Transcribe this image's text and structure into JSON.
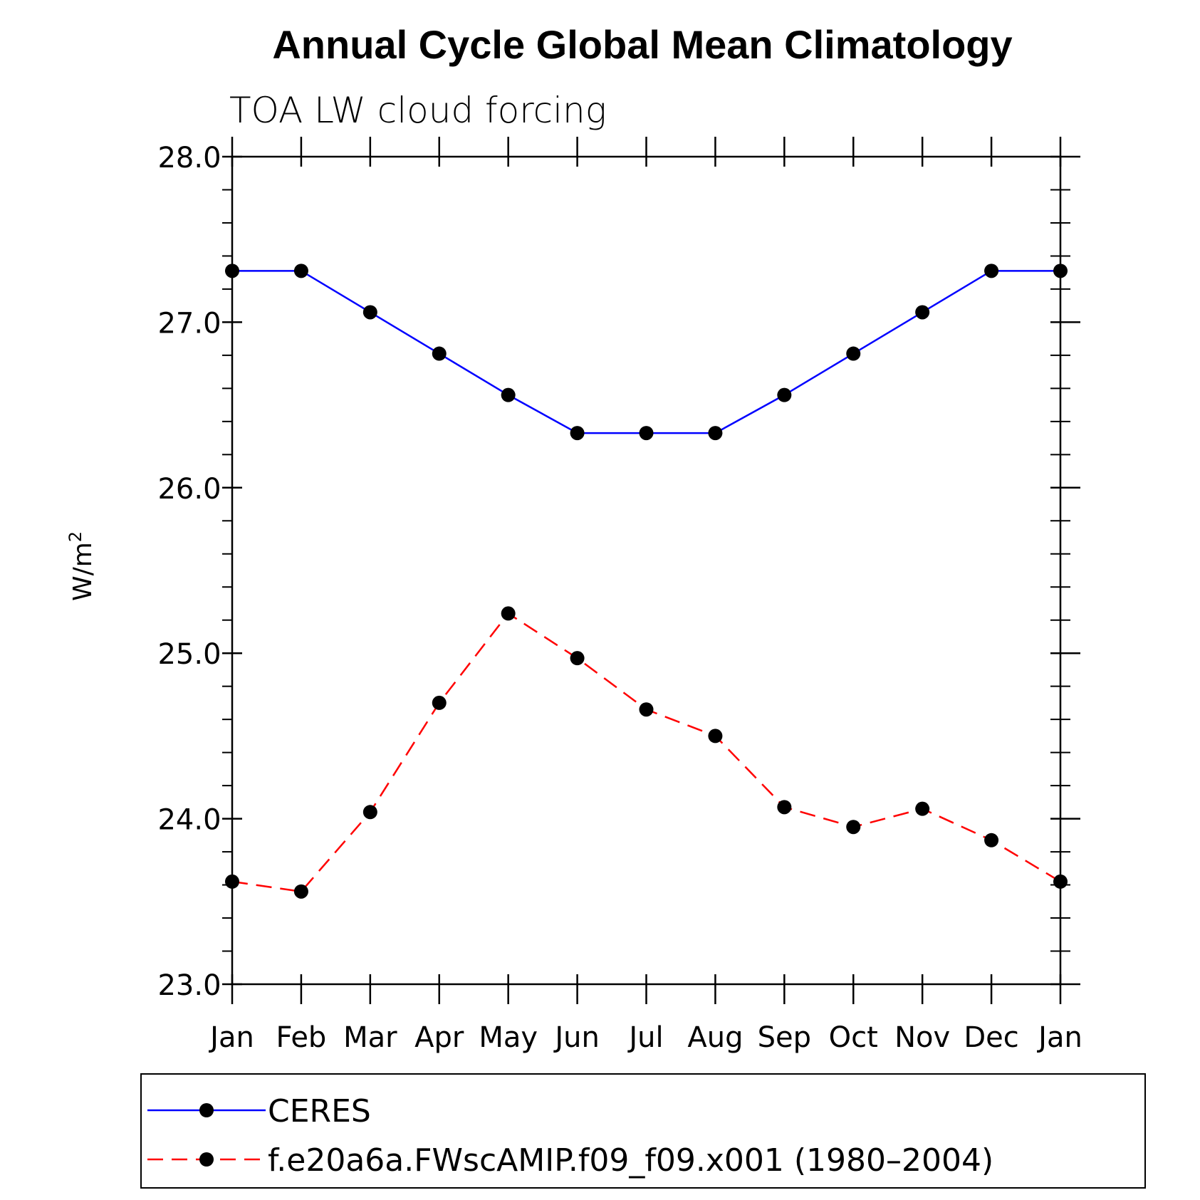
{
  "chart_data": {
    "type": "line",
    "title": "Annual Cycle Global Mean Climatology",
    "subtitle": "TOA LW cloud forcing",
    "ylabel": "W/m",
    "ylabel_sup": "2",
    "xlabel": "",
    "categories": [
      "Jan",
      "Feb",
      "Mar",
      "Apr",
      "May",
      "Jun",
      "Jul",
      "Aug",
      "Sep",
      "Oct",
      "Nov",
      "Dec",
      "Jan"
    ],
    "ylim": [
      23.0,
      28.0
    ],
    "yticks": [
      "23.0",
      "24.0",
      "25.0",
      "26.0",
      "27.0",
      "28.0"
    ],
    "grid": false,
    "legend_position": "bottom",
    "series": [
      {
        "name": "CERES",
        "color": "#0000ff",
        "dash": "solid",
        "marker": "filled-circle",
        "values": [
          27.31,
          27.31,
          27.06,
          26.81,
          26.56,
          26.33,
          26.33,
          26.33,
          26.56,
          26.81,
          27.06,
          27.31,
          27.31
        ]
      },
      {
        "name": "f.e20a6a.FWscAMIP.f09_f09.x001 (1980–2004)",
        "color": "#ff0000",
        "dash": "dashed",
        "marker": "filled-circle",
        "values": [
          23.62,
          23.56,
          24.04,
          24.7,
          25.24,
          24.97,
          24.66,
          24.5,
          24.07,
          23.95,
          24.06,
          23.87,
          23.62
        ]
      }
    ]
  }
}
